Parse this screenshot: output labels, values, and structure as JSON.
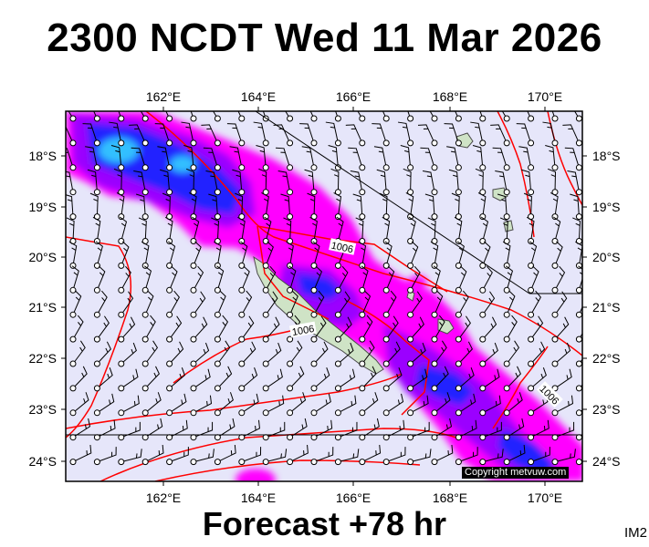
{
  "header": {
    "title": "2300 NCDT Wed 11 Mar 2026"
  },
  "footer": {
    "forecast": "Forecast +78 hr",
    "code": "IM2",
    "copyright": "Copyright metvuw.com"
  },
  "map": {
    "lon_labels": [
      "162°E",
      "164°E",
      "166°E",
      "168°E",
      "170°E"
    ],
    "lat_labels": [
      "18°S",
      "19°S",
      "20°S",
      "21°S",
      "22°S",
      "23°S",
      "24°S"
    ],
    "isobar_labels": [
      "1006",
      "1006",
      "1006"
    ],
    "colors": {
      "background": "#e6e6fa",
      "isobar": "#ff0000",
      "land": "#cfe3c6",
      "rain_light": "#ff00ff",
      "rain_mid": "#9b00ff",
      "rain_heavy": "#2020ff",
      "rain_max": "#30c0ff"
    }
  }
}
